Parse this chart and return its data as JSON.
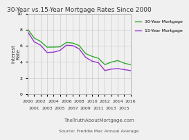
{
  "title": "30-Year vs.15-Year Mortgage Rates Since 2000",
  "xlabel": "TheTruthAboutMortgage.com",
  "source": "Source: Freddie Mac Annual Average",
  "ylabel": "Interest\nRate",
  "ylim": [
    0,
    10
  ],
  "yticks": [
    0,
    2,
    4,
    6,
    8,
    10
  ],
  "years_30": [
    2000,
    2001,
    2002,
    2003,
    2004,
    2005,
    2006,
    2007,
    2008,
    2009,
    2010,
    2011,
    2012,
    2013,
    2014,
    2015,
    2016
  ],
  "rates_30": [
    8.05,
    6.97,
    6.54,
    5.83,
    5.84,
    5.87,
    6.41,
    6.34,
    6.03,
    5.04,
    4.69,
    4.45,
    3.66,
    3.98,
    4.17,
    3.85,
    3.65
  ],
  "years_15": [
    2000,
    2001,
    2002,
    2003,
    2004,
    2005,
    2006,
    2007,
    2008,
    2009,
    2010,
    2011,
    2012,
    2013,
    2014,
    2015,
    2016
  ],
  "rates_15": [
    7.72,
    6.5,
    6.07,
    5.17,
    5.21,
    5.42,
    6.07,
    6.03,
    5.62,
    4.57,
    4.1,
    3.9,
    2.93,
    3.11,
    3.17,
    3.05,
    2.93
  ],
  "color_30": "#33aa33",
  "color_15": "#9933cc",
  "legend_30": "30-Year Mortgage",
  "legend_15": "15-Year Mortgage",
  "bg_color": "#f0f0f0",
  "grid_color": "#cccccc",
  "title_fontsize": 6.5,
  "label_fontsize": 5.0,
  "tick_fontsize": 4.5,
  "legend_fontsize": 4.5,
  "even_years": [
    2000,
    2002,
    2004,
    2006,
    2008,
    2010,
    2012,
    2014,
    2016
  ],
  "odd_years": [
    2001,
    2003,
    2005,
    2007,
    2009,
    2011,
    2013,
    2015
  ]
}
